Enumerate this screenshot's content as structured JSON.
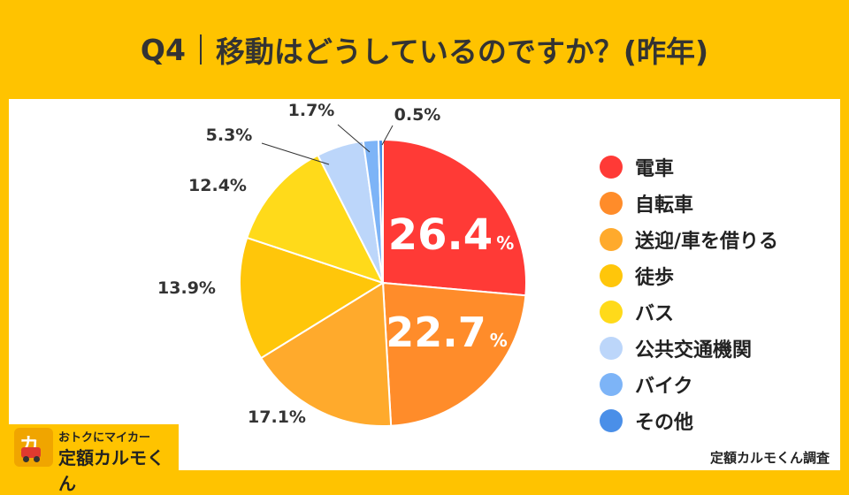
{
  "header": {
    "q": "Q4",
    "text": "移動はどうしているのですか？(昨年)"
  },
  "chart_data": {
    "type": "pie",
    "title": "Q4｜移動はどうしているのですか？(昨年)",
    "unit": "%",
    "categories": [
      "電車",
      "自転車",
      "送迎/車を借りる",
      "徒歩",
      "バス",
      "公共交通機関",
      "バイク",
      "その他"
    ],
    "values": [
      26.4,
      22.7,
      17.1,
      13.9,
      12.4,
      5.3,
      1.7,
      0.5
    ],
    "labels": [
      "26.4",
      "22.7",
      "17.1%",
      "13.9%",
      "12.4%",
      "5.3%",
      "1.7%",
      "0.5%"
    ],
    "colors": [
      "#FF3A36",
      "#FF8C2A",
      "#FFAA2C",
      "#FFC60A",
      "#FFDA1A",
      "#BCD6FA",
      "#7DB4F7",
      "#4A8FE8"
    ],
    "legend_position": "right"
  },
  "source": "定額カルモくん調査",
  "logo": {
    "tagline": "おトクにマイカー",
    "name": "定額カルモくん"
  }
}
